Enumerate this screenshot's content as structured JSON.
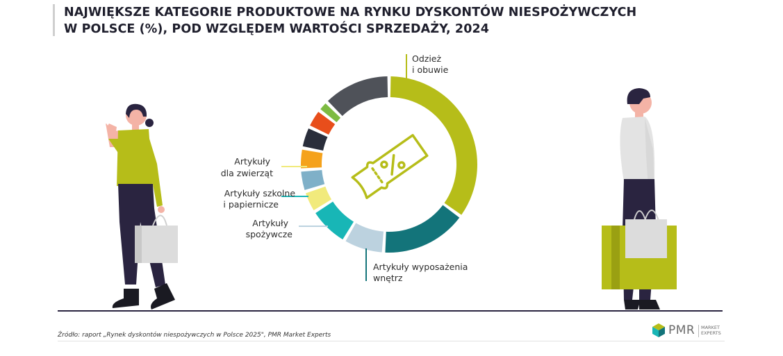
{
  "title_lines": [
    "NAJWIĘKSZE KATEGORIE PRODUKTOWE NA RYNKU DYSKONTÓW NIESPOŻYWCZYCH",
    "W POLSCE (%), POD WZGLĘDEM WARTOŚCI SPRZEDAŻY, 2024"
  ],
  "chart_data": {
    "type": "pie",
    "donut": true,
    "slices": [
      {
        "label_lines": [
          "Odzież",
          "i obuwie"
        ],
        "value": 35,
        "color": "#b6bd19"
      },
      {
        "label_lines": [
          "Artykuły wyposażenia",
          "wnętrz"
        ],
        "value": 16,
        "color": "#13747a"
      },
      {
        "label_lines": [
          "Artykuły",
          "spożywcze"
        ],
        "value": 7.5,
        "color": "#bcd2df"
      },
      {
        "label_lines": [
          "Artykuły szkolne",
          "i papiernicze"
        ],
        "value": 7.5,
        "color": "#18b6b6"
      },
      {
        "label_lines": [
          "Artykuły",
          "dla zwierząt"
        ],
        "value": 4,
        "color": "#f1ea7c"
      },
      {
        "label_lines": [],
        "value": 4,
        "color": "#7fb0c8"
      },
      {
        "label_lines": [],
        "value": 4,
        "color": "#f5a21c"
      },
      {
        "label_lines": [],
        "value": 4,
        "color": "#2a2e3b"
      },
      {
        "label_lines": [],
        "value": 3.5,
        "color": "#e84e1b"
      },
      {
        "label_lines": [],
        "value": 2,
        "color": "#7dbb42"
      },
      {
        "label_lines": [],
        "value": 12.5,
        "color": "#4f5259"
      }
    ],
    "center_icon": "percent-tag-icon"
  },
  "source": "Źródło: raport „Rynek dyskontów niespożywczych w Polsce 2025\", PMR Market Experts",
  "logo": {
    "name": "PMR",
    "sub_lines": [
      "MARKET",
      "EXPERTS"
    ]
  }
}
